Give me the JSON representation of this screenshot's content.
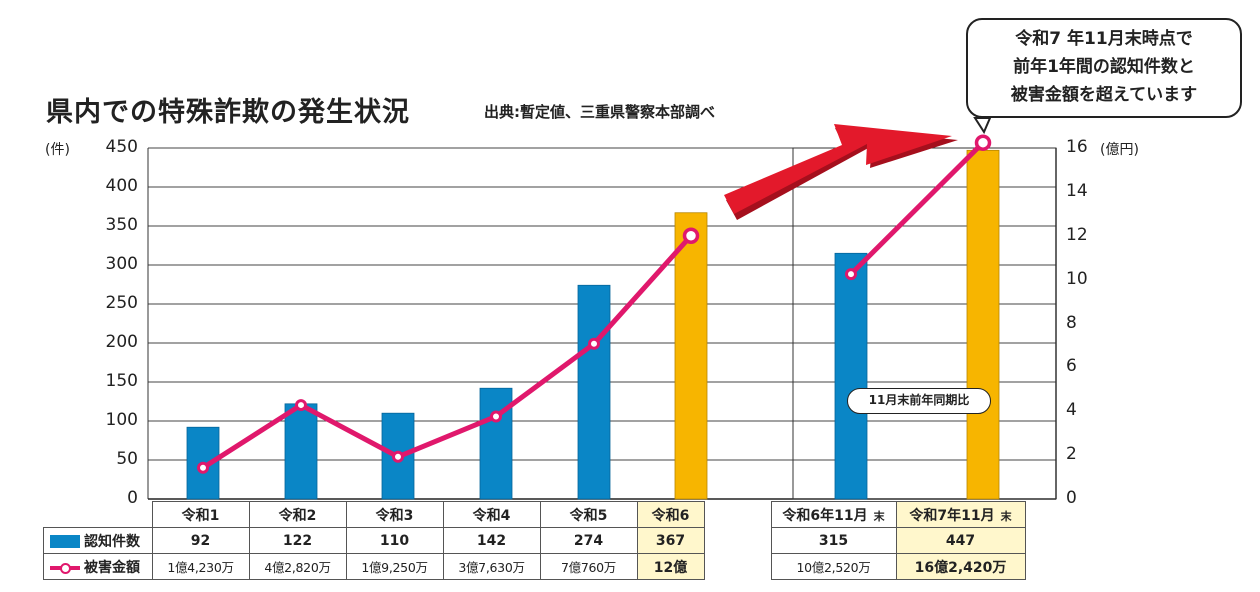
{
  "chart_data": {
    "type": "bar",
    "title": "県内での特殊詐欺の発生状況",
    "source": "出典:暫定値、三重県警察本部調べ",
    "callout": [
      "令和7 年11月末時点で",
      "前年1年間の認知件数と",
      "被害金額を超えています"
    ],
    "comparison_label": "11月末前年同期比",
    "categories": [
      "令和1",
      "令和2",
      "令和3",
      "令和4",
      "令和5",
      "令和6",
      "令和6年11月",
      "令和7年11月"
    ],
    "category_suffix": [
      "",
      "",
      "",
      "",
      "",
      "",
      "末",
      "末"
    ],
    "series": [
      {
        "name": "認知件数",
        "type": "bar",
        "axis": "left",
        "values": [
          92,
          122,
          110,
          142,
          274,
          367,
          315,
          447
        ],
        "labels": [
          "92",
          "122",
          "110",
          "142",
          "274",
          "367",
          "315",
          "447"
        ]
      },
      {
        "name": "被害金額",
        "type": "line",
        "axis": "right",
        "values": [
          1.423,
          4.282,
          1.925,
          3.763,
          7.076,
          12.0,
          10.252,
          16.242
        ],
        "labels": [
          "1億4,230万",
          "4億2,820万",
          "1億9,250万",
          "3億7,630万",
          "7億760万",
          "12億",
          "10億2,520万",
          "16億2,420万"
        ]
      }
    ],
    "highlight": [
      false,
      false,
      false,
      false,
      false,
      true,
      false,
      true
    ],
    "y_left": {
      "label": "(件)",
      "min": 0,
      "max": 450,
      "ticks": [
        0,
        50,
        100,
        150,
        200,
        250,
        300,
        350,
        400,
        450
      ]
    },
    "y_right": {
      "label": "(億円)",
      "min": 0,
      "max": 16,
      "ticks": [
        0,
        2,
        4,
        6,
        8,
        10,
        12,
        14,
        16
      ]
    },
    "grid": true
  },
  "colors": {
    "bar_normal": "#0a86c6",
    "bar_highlight": "#f7b500",
    "line": "#e0186c",
    "arrow": "#e3192b",
    "grid": "#444444"
  }
}
